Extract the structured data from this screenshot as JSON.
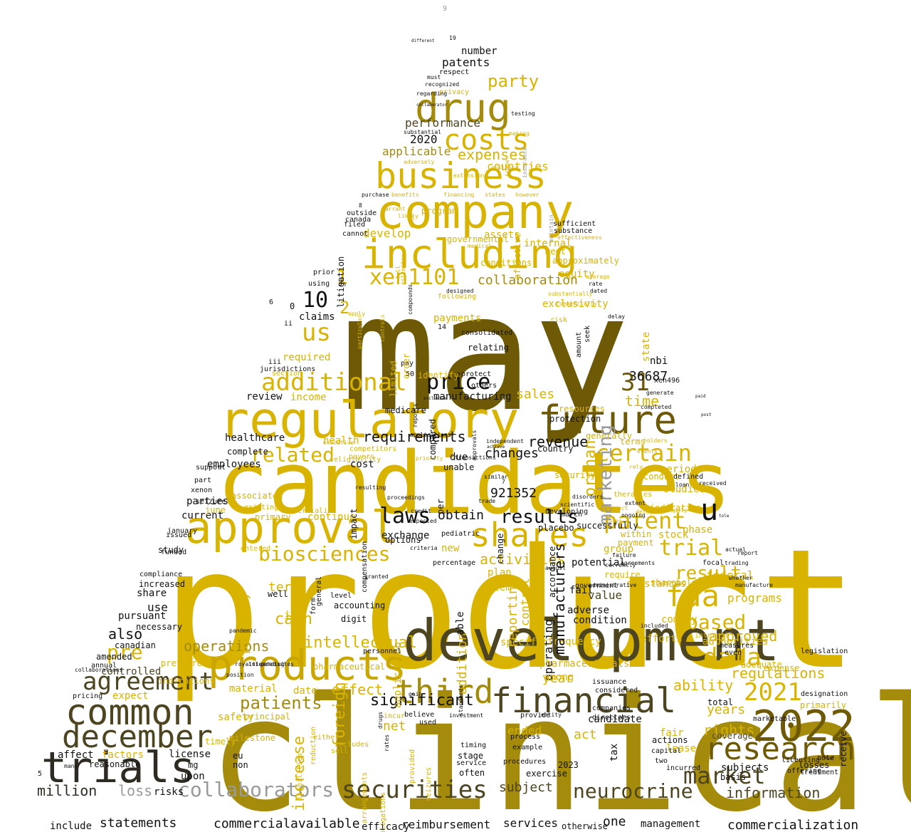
{
  "palette": {
    "gold": "#d8b300",
    "amber": "#c9a600",
    "olive": "#a48b0c",
    "dark_olive": "#6e5a06",
    "brown": "#4d4420",
    "charcoal": "#2e2b22",
    "black": "#111111",
    "grey": "#9a9a9a"
  },
  "words": [
    {
      "text": "may"
    },
    {
      "text": "product"
    },
    {
      "text": "clinical"
    },
    {
      "text": "candidates"
    },
    {
      "text": "development"
    },
    {
      "text": "regulatory"
    },
    {
      "text": "company"
    },
    {
      "text": "including"
    },
    {
      "text": "approval"
    },
    {
      "text": "products"
    },
    {
      "text": "trials"
    },
    {
      "text": "business"
    },
    {
      "text": "drug"
    },
    {
      "text": "2022"
    },
    {
      "text": "future"
    },
    {
      "text": "common"
    },
    {
      "text": "financial"
    },
    {
      "text": "shares"
    },
    {
      "text": "december"
    },
    {
      "text": "research"
    },
    {
      "text": "u"
    },
    {
      "text": "securities"
    },
    {
      "text": "fda"
    },
    {
      "text": "collaborators"
    },
    {
      "text": "third"
    },
    {
      "text": "market"
    },
    {
      "text": "neurocrine"
    },
    {
      "text": "costs"
    },
    {
      "text": "xen1101"
    },
    {
      "text": "additional"
    },
    {
      "text": "agreement"
    },
    {
      "text": "data"
    },
    {
      "text": "2021"
    },
    {
      "text": "certain"
    },
    {
      "text": "trial"
    },
    {
      "text": "patent"
    },
    {
      "text": "us"
    },
    {
      "text": "biosciences"
    },
    {
      "text": "laws"
    },
    {
      "text": "price"
    },
    {
      "text": "31"
    },
    {
      "text": "marketing"
    },
    {
      "text": "result"
    },
    {
      "text": "based"
    },
    {
      "text": "related"
    },
    {
      "text": "results"
    },
    {
      "text": "million"
    },
    {
      "text": "loss"
    },
    {
      "text": "information"
    },
    {
      "text": "10"
    },
    {
      "text": "patients"
    },
    {
      "text": "significant"
    },
    {
      "text": "operations"
    },
    {
      "text": "intellectual"
    },
    {
      "text": "pre"
    },
    {
      "text": "cash"
    },
    {
      "text": "party"
    },
    {
      "text": "expenses"
    },
    {
      "text": "requirements"
    },
    {
      "text": "revenue"
    },
    {
      "text": "also"
    },
    {
      "text": "ability"
    },
    {
      "text": "effect"
    },
    {
      "text": "rights"
    },
    {
      "text": "year"
    },
    {
      "text": "years"
    },
    {
      "text": "regulations"
    },
    {
      "text": "approved"
    },
    {
      "text": "activities"
    },
    {
      "text": "obtain"
    },
    {
      "text": "changes"
    },
    {
      "text": "time"
    },
    {
      "text": "orphan"
    },
    {
      "text": "sales"
    },
    {
      "text": "collaboration"
    },
    {
      "text": "2"
    },
    {
      "text": "1"
    },
    {
      "text": "applicable"
    },
    {
      "text": "performance"
    },
    {
      "text": "2020"
    },
    {
      "text": "patents"
    },
    {
      "text": "number"
    },
    {
      "text": "countries"
    },
    {
      "text": "develop"
    },
    {
      "text": "statements"
    },
    {
      "text": "commercial"
    },
    {
      "text": "available"
    },
    {
      "text": "reimbursement"
    },
    {
      "text": "services"
    },
    {
      "text": "one"
    },
    {
      "text": "commercialization"
    },
    {
      "text": "include"
    },
    {
      "text": "management"
    },
    {
      "text": "efficacy"
    },
    {
      "text": "otherwise"
    },
    {
      "text": "subject"
    },
    {
      "text": "affect"
    },
    {
      "text": "license"
    },
    {
      "text": "programs"
    },
    {
      "text": "federal"
    },
    {
      "text": "phase"
    },
    {
      "text": "studies"
    },
    {
      "text": "period"
    },
    {
      "text": "stock"
    },
    {
      "text": "value"
    },
    {
      "text": "adverse"
    },
    {
      "text": "condition"
    },
    {
      "text": "term"
    },
    {
      "text": "property"
    },
    {
      "text": "inc"
    },
    {
      "text": "use"
    },
    {
      "text": "share"
    },
    {
      "text": "pursuant"
    },
    {
      "text": "controlled"
    },
    {
      "text": "material"
    },
    {
      "text": "date"
    },
    {
      "text": "safety"
    },
    {
      "text": "net"
    },
    {
      "text": "foreign"
    },
    {
      "text": "increase"
    },
    {
      "text": "act"
    },
    {
      "text": "candidate"
    },
    {
      "text": "lease"
    },
    {
      "text": "fair"
    },
    {
      "text": "ended"
    },
    {
      "text": "tax"
    },
    {
      "text": "application"
    },
    {
      "text": "addition"
    },
    {
      "text": "operating"
    },
    {
      "text": "fail"
    },
    {
      "text": "potential"
    },
    {
      "text": "plan"
    },
    {
      "text": "item"
    },
    {
      "text": "exchange"
    },
    {
      "text": "new"
    },
    {
      "text": "reporting"
    },
    {
      "text": "control"
    },
    {
      "text": "manufacturing"
    },
    {
      "text": "required"
    },
    {
      "text": "income"
    },
    {
      "text": "review"
    },
    {
      "text": "claims"
    },
    {
      "text": "healthcare"
    },
    {
      "text": "employees"
    },
    {
      "text": "parties"
    },
    {
      "text": "current"
    },
    {
      "text": "upon"
    },
    {
      "text": "risks"
    },
    {
      "text": "health"
    },
    {
      "text": "continue"
    },
    {
      "text": "cost"
    },
    {
      "text": "payments"
    },
    {
      "text": "equity"
    },
    {
      "text": "internal"
    },
    {
      "text": "assets"
    },
    {
      "text": "filed"
    },
    {
      "text": "using"
    },
    {
      "text": "prior"
    },
    {
      "text": "nbi"
    },
    {
      "text": "state"
    },
    {
      "text": "xen496"
    },
    {
      "text": "921352"
    },
    {
      "text": "36687"
    },
    {
      "text": "3"
    },
    {
      "text": "6"
    },
    {
      "text": "5"
    },
    {
      "text": "9"
    },
    {
      "text": "19"
    },
    {
      "text": "respect"
    },
    {
      "text": "privacy"
    },
    {
      "text": "adversely"
    },
    {
      "text": "substantial"
    },
    {
      "text": "recognized"
    },
    {
      "text": "regarding"
    },
    {
      "text": "must"
    },
    {
      "text": "testing"
    },
    {
      "text": "pay"
    },
    {
      "text": "50"
    },
    {
      "text": "14"
    },
    {
      "text": "8"
    },
    {
      "text": "7"
    },
    {
      "text": "0"
    },
    {
      "text": "ii"
    },
    {
      "text": "iii"
    },
    {
      "text": "jurisdictions"
    },
    {
      "text": "among"
    },
    {
      "text": "specific"
    },
    {
      "text": "frequency"
    },
    {
      "text": "pharmaceuticals"
    },
    {
      "text": "authorities"
    },
    {
      "text": "substances"
    },
    {
      "text": "efforts"
    },
    {
      "text": "shareholders"
    },
    {
      "text": "comply"
    },
    {
      "text": "require"
    },
    {
      "text": "group"
    },
    {
      "text": "payment"
    },
    {
      "text": "within"
    },
    {
      "text": "indication"
    },
    {
      "text": "conduct"
    },
    {
      "text": "generally"
    },
    {
      "text": "terms"
    },
    {
      "text": "resources"
    },
    {
      "text": "protection"
    },
    {
      "text": "security"
    },
    {
      "text": "country"
    },
    {
      "text": "placebo"
    },
    {
      "text": "manufacturers"
    },
    {
      "text": "accordance"
    },
    {
      "text": "march"
    },
    {
      "text": "successfully"
    },
    {
      "text": "due"
    },
    {
      "text": "unable"
    },
    {
      "text": "change"
    },
    {
      "text": "per"
    },
    {
      "text": "impact"
    },
    {
      "text": "options"
    },
    {
      "text": "compensation"
    },
    {
      "text": "pediatric"
    },
    {
      "text": "percentage"
    },
    {
      "text": "granted"
    },
    {
      "text": "able"
    },
    {
      "text": "accounting"
    },
    {
      "text": "level"
    },
    {
      "text": "digit"
    },
    {
      "text": "personnel"
    },
    {
      "text": "form"
    },
    {
      "text": "general"
    },
    {
      "text": "well"
    },
    {
      "text": "necessary"
    },
    {
      "text": "increased"
    },
    {
      "text": "compliance"
    },
    {
      "text": "study"
    },
    {
      "text": "issued"
    },
    {
      "text": "january"
    },
    {
      "text": "funded"
    },
    {
      "text": "reasonable"
    },
    {
      "text": "june"
    },
    {
      "text": "timely"
    },
    {
      "text": "principal"
    },
    {
      "text": "milestone"
    },
    {
      "text": "eu"
    },
    {
      "text": "non"
    },
    {
      "text": "mg"
    },
    {
      "text": "factors"
    },
    {
      "text": "amended"
    },
    {
      "text": "annual"
    },
    {
      "text": "canadian"
    },
    {
      "text": "pricing"
    },
    {
      "text": "expect"
    },
    {
      "text": "preferred"
    },
    {
      "text": "indications"
    },
    {
      "text": "primary"
    },
    {
      "text": "commercialize"
    },
    {
      "text": "existing"
    },
    {
      "text": "associated"
    },
    {
      "text": "seizure"
    },
    {
      "text": "xenon"
    },
    {
      "text": "part"
    },
    {
      "text": "support"
    },
    {
      "text": "complete"
    },
    {
      "text": "identify"
    },
    {
      "text": "others"
    },
    {
      "text": "protect"
    },
    {
      "text": "order"
    },
    {
      "text": "limited"
    },
    {
      "text": "medicare"
    },
    {
      "text": "relating"
    },
    {
      "text": "consolidated"
    },
    {
      "text": "exclusivity"
    },
    {
      "text": "risk"
    },
    {
      "text": "rate"
    },
    {
      "text": "dated"
    },
    {
      "text": "delay"
    },
    {
      "text": "seek"
    },
    {
      "text": "amount"
    },
    {
      "text": "average"
    },
    {
      "text": "meet"
    },
    {
      "text": "approximately"
    },
    {
      "text": "conditions"
    },
    {
      "text": "governmental"
    },
    {
      "text": "program"
    },
    {
      "text": "following"
    },
    {
      "text": "effective"
    },
    {
      "text": "litigation"
    },
    {
      "text": "outside"
    },
    {
      "text": "canada"
    },
    {
      "text": "cannot"
    },
    {
      "text": "purchase"
    },
    {
      "text": "benefits"
    },
    {
      "text": "financing"
    },
    {
      "text": "states"
    },
    {
      "text": "however"
    },
    {
      "text": "sufficient"
    },
    {
      "text": "substance"
    },
    {
      "text": "different"
    },
    {
      "text": "insurance"
    },
    {
      "text": "service"
    },
    {
      "text": "stage"
    },
    {
      "text": "often"
    },
    {
      "text": "timing"
    },
    {
      "text": "procedures"
    },
    {
      "text": "example"
    },
    {
      "text": "process"
    },
    {
      "text": "exercise"
    },
    {
      "text": "2023"
    },
    {
      "text": "capital"
    },
    {
      "text": "two"
    },
    {
      "text": "incurred"
    },
    {
      "text": "actions"
    },
    {
      "text": "subjects"
    },
    {
      "text": "basis"
    },
    {
      "text": "offering"
    },
    {
      "text": "losses"
    },
    {
      "text": "treatment"
    },
    {
      "text": "note"
    },
    {
      "text": "primarily"
    },
    {
      "text": "designation"
    },
    {
      "text": "licensing"
    },
    {
      "text": "expense"
    },
    {
      "text": "adequate"
    },
    {
      "text": "even"
    },
    {
      "text": "measures"
    },
    {
      "text": "interest"
    },
    {
      "text": "coverage"
    },
    {
      "text": "total"
    },
    {
      "text": "focal"
    },
    {
      "text": "received"
    },
    {
      "text": "manufacture"
    },
    {
      "text": "whether"
    },
    {
      "text": "report"
    },
    {
      "text": "actual"
    },
    {
      "text": "trading"
    },
    {
      "text": "defined"
    },
    {
      "text": "loan"
    },
    {
      "text": "generate"
    },
    {
      "text": "completed"
    },
    {
      "text": "paid"
    },
    {
      "text": "holders"
    },
    {
      "text": "events"
    },
    {
      "text": "therapies"
    },
    {
      "text": "rely"
    },
    {
      "text": "delays"
    },
    {
      "text": "supply"
    },
    {
      "text": "included"
    },
    {
      "text": "issuance"
    },
    {
      "text": "considered"
    },
    {
      "text": "companies"
    },
    {
      "text": "directors"
    },
    {
      "text": "provide"
    },
    {
      "text": "incur"
    },
    {
      "text": "believe"
    },
    {
      "text": "used"
    },
    {
      "text": "investment"
    },
    {
      "text": "reduction"
    },
    {
      "text": "liabilities"
    },
    {
      "text": "seizures"
    },
    {
      "text": "provided"
    },
    {
      "text": "obligations"
    },
    {
      "text": "arrangements"
    },
    {
      "text": "pharmaceutical"
    },
    {
      "text": "government"
    },
    {
      "text": "administrative"
    },
    {
      "text": "currently"
    },
    {
      "text": "agreements"
    },
    {
      "text": "failure"
    },
    {
      "text": "ongoing"
    },
    {
      "text": "extent"
    },
    {
      "text": "exclusive"
    },
    {
      "text": "compared"
    },
    {
      "text": "reports"
    },
    {
      "text": "approvals"
    },
    {
      "text": "achieve"
    },
    {
      "text": "applications"
    },
    {
      "text": "transactions"
    },
    {
      "text": "proceedings"
    },
    {
      "text": "trade"
    },
    {
      "text": "similar"
    },
    {
      "text": "competitors"
    },
    {
      "text": "payers"
    },
    {
      "text": "eligibility"
    },
    {
      "text": "executive"
    },
    {
      "text": "resulting"
    },
    {
      "text": "credit"
    },
    {
      "text": "expected"
    },
    {
      "text": "criteria"
    },
    {
      "text": "developing"
    },
    {
      "text": "scientific"
    },
    {
      "text": "disorders"
    },
    {
      "text": "contract"
    },
    {
      "text": "rules"
    },
    {
      "text": "scope"
    },
    {
      "text": "making"
    },
    {
      "text": "extension"
    },
    {
      "text": "epilepsy"
    },
    {
      "text": "medical"
    },
    {
      "text": "designed"
    },
    {
      "text": "estimates"
    },
    {
      "text": "full"
    },
    {
      "text": "controls"
    },
    {
      "text": "particular"
    },
    {
      "text": "compounds"
    },
    {
      "text": "maintain"
    },
    {
      "text": "effectiveness"
    },
    {
      "text": "substantially"
    },
    {
      "text": "commercially"
    },
    {
      "text": "apply"
    },
    {
      "text": "likely"
    },
    {
      "text": "warrant"
    },
    {
      "text": "dose"
    },
    {
      "text": "entered"
    },
    {
      "text": "section"
    },
    {
      "text": "standards"
    },
    {
      "text": "entity"
    },
    {
      "text": "rates"
    },
    {
      "text": "gain"
    },
    {
      "text": "drugs"
    },
    {
      "text": "sites"
    },
    {
      "text": "pending"
    },
    {
      "text": "intended"
    },
    {
      "text": "royalties"
    },
    {
      "text": "position"
    },
    {
      "text": "pandemic"
    },
    {
      "text": "collaborations"
    },
    {
      "text": "august"
    },
    {
      "text": "sell"
    },
    {
      "text": "either"
    },
    {
      "text": "priority"
    },
    {
      "text": "independent"
    },
    {
      "text": "includes"
    },
    {
      "text": "legislation"
    },
    {
      "text": "marketable"
    },
    {
      "text": "receive"
    },
    {
      "text": "many"
    },
    {
      "text": "post"
    },
    {
      "text": "tole"
    },
    {
      "text": "collaborator"
    },
    {
      "text": "comprehensive"
    },
    {
      "text": "developed"
    },
    {
      "text": "amounts"
    },
    {
      "text": "experience"
    },
    {
      "text": "need"
    },
    {
      "text": "methods"
    },
    {
      "text": "technology"
    },
    {
      "text": "possible"
    },
    {
      "text": "recorded"
    },
    {
      "text": "effects"
    },
    {
      "text": "equipment"
    },
    {
      "text": "plans"
    },
    {
      "text": "policies"
    },
    {
      "text": "monthly"
    },
    {
      "text": "determine"
    },
    {
      "text": "warrants"
    },
    {
      "text": "royalty"
    },
    {
      "text": "obtained"
    },
    {
      "text": "registered"
    },
    {
      "text": "contracts"
    },
    {
      "text": "schedule"
    },
    {
      "text": "less"
    },
    {
      "text": "ema"
    },
    {
      "text": "significantly"
    },
    {
      "text": "sold"
    },
    {
      "text": "safe"
    },
    {
      "text": "statement"
    },
    {
      "text": "false"
    },
    {
      "text": "termination"
    },
    {
      "text": "formulation"
    },
    {
      "text": "standard"
    },
    {
      "text": "civil"
    },
    {
      "text": "acceptable"
    },
    {
      "text": "k"
    },
    {
      "text": "label"
    },
    {
      "text": "file"
    },
    {
      "text": "become"
    },
    {
      "text": "connection"
    },
    {
      "text": "decrease"
    },
    {
      "text": "private"
    },
    {
      "text": "might"
    },
    {
      "text": "evaluate"
    },
    {
      "text": "known"
    },
    {
      "text": "15"
    },
    {
      "text": "25"
    },
    {
      "text": "20"
    },
    {
      "text": "30"
    },
    {
      "text": "4"
    },
    {
      "text": "12"
    },
    {
      "text": "001"
    },
    {
      "text": "2019"
    },
    {
      "text": "1st"
    },
    {
      "text": "human"
    },
    {
      "text": "initial"
    },
    {
      "text": "terminated"
    }
  ]
}
